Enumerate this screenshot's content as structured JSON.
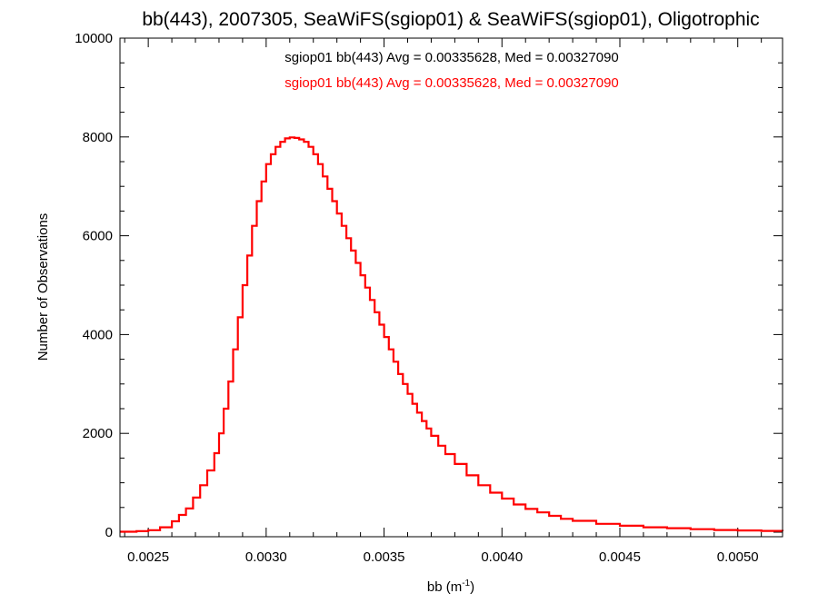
{
  "chart_data": {
    "type": "histogram",
    "title": "bb(443), 2007305, SeaWiFS(sgiop01) & SeaWiFS(sgiop01), Oligotrophic",
    "xlabel": "bb (m",
    "xlabel_sup": "-1",
    "xlabel_close": ")",
    "ylabel": "Number of Observations",
    "xlim": [
      0.00238,
      0.00519
    ],
    "ylim": [
      0,
      10000
    ],
    "grid": false,
    "x_ticks": [
      0.0025,
      0.003,
      0.0035,
      0.004,
      0.0045,
      0.005
    ],
    "x_tick_labels": [
      "0.0025",
      "0.0030",
      "0.0035",
      "0.0040",
      "0.0045",
      "0.0050"
    ],
    "y_ticks": [
      0,
      2000,
      4000,
      6000,
      8000,
      10000
    ],
    "y_tick_labels": [
      "0",
      "2000",
      "4000",
      "6000",
      "8000",
      "10000"
    ],
    "annotations": [
      {
        "text": "sgiop01 bb(443) Avg = 0.00335628, Med = 0.00327090",
        "color": "#000000"
      },
      {
        "text": "sgiop01 bb(443) Avg = 0.00335628, Med = 0.00327090",
        "color": "#ff0000"
      }
    ],
    "series": [
      {
        "color": "#ff0000",
        "x": [
          0.00238,
          0.00245,
          0.0025,
          0.00255,
          0.0026,
          0.00263,
          0.00266,
          0.00269,
          0.00272,
          0.00275,
          0.00278,
          0.0028,
          0.00282,
          0.00284,
          0.00286,
          0.00288,
          0.0029,
          0.00292,
          0.00294,
          0.00296,
          0.00298,
          0.003,
          0.00302,
          0.00304,
          0.00306,
          0.00308,
          0.0031,
          0.00312,
          0.00314,
          0.00316,
          0.00318,
          0.0032,
          0.00322,
          0.00324,
          0.00326,
          0.00328,
          0.0033,
          0.00332,
          0.00334,
          0.00336,
          0.00338,
          0.0034,
          0.00342,
          0.00344,
          0.00346,
          0.00348,
          0.0035,
          0.00352,
          0.00354,
          0.00356,
          0.00358,
          0.0036,
          0.00362,
          0.00364,
          0.00366,
          0.00368,
          0.0037,
          0.00373,
          0.00376,
          0.0038,
          0.00385,
          0.0039,
          0.00395,
          0.004,
          0.00405,
          0.0041,
          0.00415,
          0.0042,
          0.00425,
          0.0043,
          0.0044,
          0.0045,
          0.0046,
          0.0047,
          0.0048,
          0.0049,
          0.005,
          0.0051,
          0.00519
        ],
        "y": [
          10,
          20,
          40,
          100,
          220,
          350,
          480,
          700,
          950,
          1250,
          1600,
          2000,
          2500,
          3050,
          3700,
          4350,
          5000,
          5600,
          6200,
          6700,
          7100,
          7450,
          7650,
          7800,
          7900,
          7970,
          7990,
          7980,
          7950,
          7900,
          7800,
          7650,
          7450,
          7200,
          6950,
          6700,
          6450,
          6200,
          5950,
          5700,
          5450,
          5200,
          4950,
          4700,
          4450,
          4200,
          3950,
          3700,
          3450,
          3200,
          3000,
          2800,
          2600,
          2420,
          2250,
          2100,
          1950,
          1750,
          1580,
          1380,
          1150,
          950,
          800,
          680,
          560,
          470,
          400,
          330,
          270,
          230,
          170,
          130,
          100,
          80,
          60,
          45,
          35,
          25,
          20
        ]
      }
    ]
  }
}
